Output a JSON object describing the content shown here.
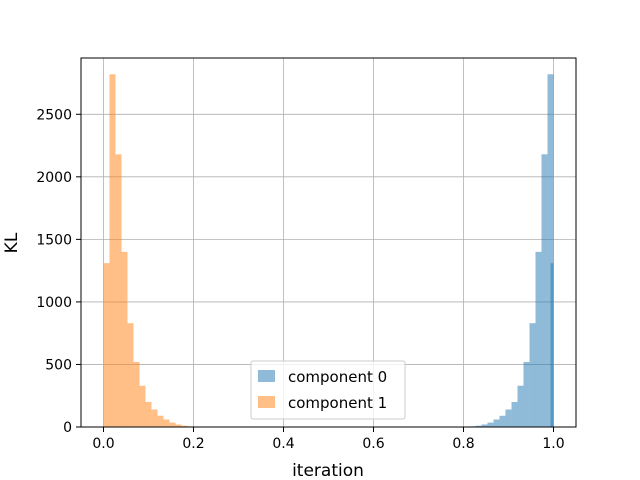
{
  "chart_data": {
    "type": "histogram",
    "xlabel": "iteration",
    "ylabel": "KL",
    "xlim": [
      -0.05,
      1.05
    ],
    "ylim": [
      0,
      2950
    ],
    "xticks": [
      0.0,
      0.2,
      0.4,
      0.6,
      0.8,
      1.0
    ],
    "xtick_labels": [
      "0.0",
      "0.2",
      "0.4",
      "0.6",
      "0.8",
      "1.0"
    ],
    "yticks": [
      0,
      500,
      1000,
      1500,
      2000,
      2500
    ],
    "ytick_labels": [
      "0",
      "500",
      "1000",
      "1500",
      "2000",
      "2500"
    ],
    "grid": true,
    "legend_position": "lower-center",
    "bin_width": 0.01333,
    "series": [
      {
        "name": "component 0",
        "color": "#1f77b4",
        "alpha": 0.5,
        "bin_starts": [
          0.8,
          0.8133,
          0.8267,
          0.84,
          0.8533,
          0.8667,
          0.88,
          0.8933,
          0.9067,
          0.92,
          0.9333,
          0.9467,
          0.96,
          0.9733,
          0.9867
        ],
        "counts": [
          2,
          5,
          10,
          20,
          35,
          60,
          90,
          140,
          200,
          330,
          520,
          830,
          1400,
          2180,
          2820
        ],
        "extra_bin": {
          "start": 0.9867,
          "count": 1310
        }
      },
      {
        "name": "component 1",
        "color": "#ff7f0e",
        "alpha": 0.5,
        "bin_starts": [
          0.0,
          0.0133,
          0.0267,
          0.04,
          0.0533,
          0.0667,
          0.08,
          0.0933,
          0.1067,
          0.12,
          0.1333,
          0.1467,
          0.16,
          0.1733,
          0.1867
        ],
        "counts": [
          1310,
          2820,
          2180,
          1400,
          830,
          520,
          330,
          200,
          140,
          90,
          60,
          35,
          20,
          10,
          5
        ]
      }
    ]
  }
}
